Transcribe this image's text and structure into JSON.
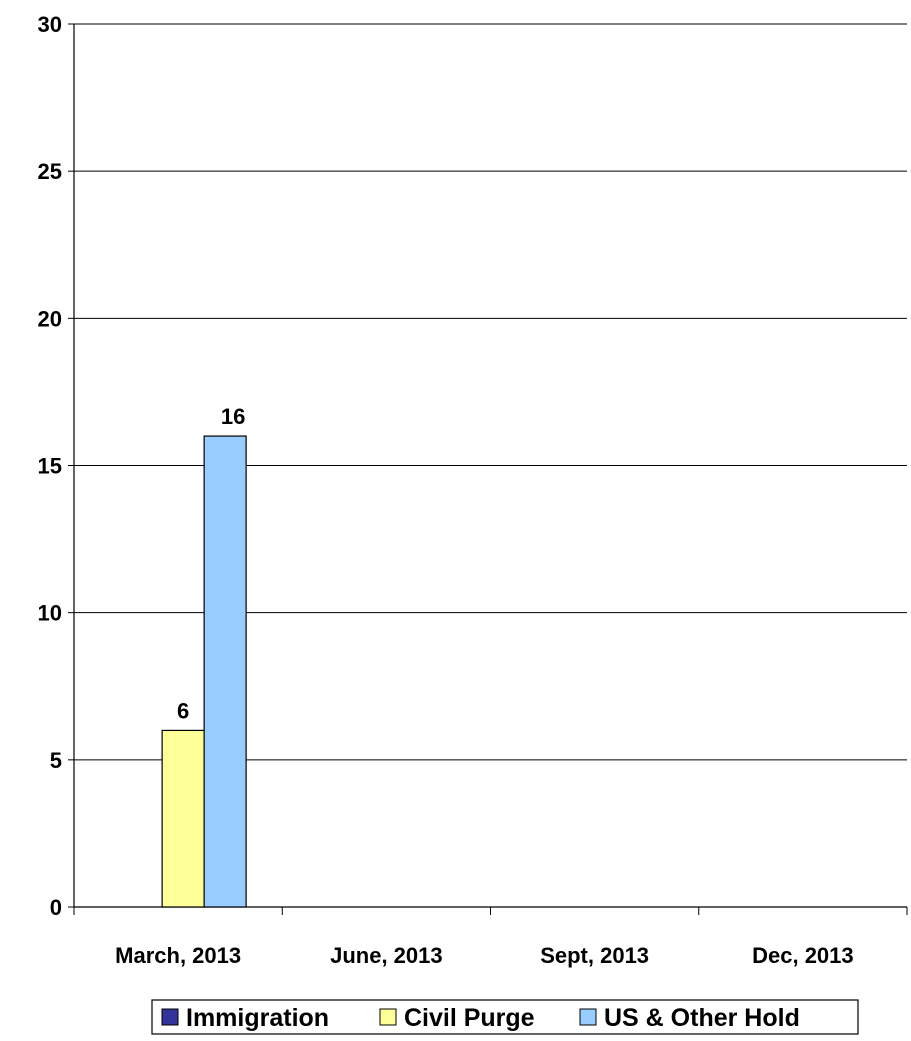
{
  "chart_data": {
    "type": "bar",
    "categories": [
      "March, 2013",
      "June, 2013",
      "Sept, 2013",
      "Dec, 2013"
    ],
    "series": [
      {
        "name": "Immigration",
        "color": "#333399",
        "values": [
          null,
          null,
          null,
          null
        ]
      },
      {
        "name": "Civil Purge",
        "color": "#FFFF99",
        "values": [
          6,
          null,
          null,
          null
        ]
      },
      {
        "name": "US & Other Hold",
        "color": "#99CCFF",
        "values": [
          16,
          null,
          null,
          null
        ]
      }
    ],
    "ylim": [
      0,
      30
    ],
    "yticks": [
      0,
      5,
      10,
      15,
      20,
      25,
      30
    ],
    "grid": true,
    "legend_position": "bottom",
    "data_labels": true
  }
}
